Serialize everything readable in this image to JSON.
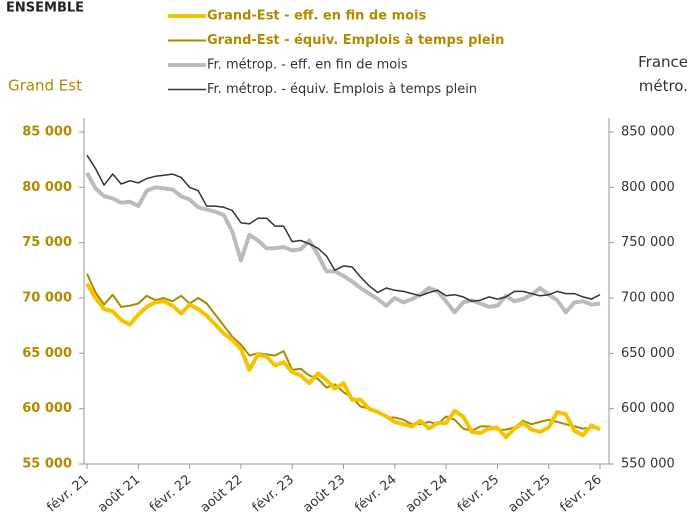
{
  "chart_data": {
    "type": "line",
    "title": "ENSEMBLE",
    "ylabel": "Grand Est",
    "y2label": "France métro.",
    "categories": [
      "févr. 21",
      null,
      null,
      null,
      null,
      null,
      "août 21",
      null,
      null,
      null,
      null,
      null,
      "févr. 22",
      null,
      null,
      null,
      null,
      null,
      "août 22",
      null,
      null,
      null,
      null,
      null,
      "févr. 23",
      null,
      null,
      null,
      null,
      null,
      "août 23",
      null,
      null,
      null,
      null,
      null,
      "févr. 24",
      null,
      null,
      null,
      null,
      null,
      "août 24",
      null,
      null,
      null,
      null,
      null,
      "févr. 25",
      null,
      null,
      null,
      null,
      null,
      "août 25",
      null,
      null,
      null,
      null,
      null,
      "févr. 26"
    ],
    "ylim": [
      55000,
      85000
    ],
    "yticks": [
      {
        "value": 55000,
        "label": "55 000"
      },
      {
        "value": 60000,
        "label": "60 000"
      },
      {
        "value": 65000,
        "label": "65 000"
      },
      {
        "value": 70000,
        "label": "70 000"
      },
      {
        "value": 75000,
        "label": "75 000"
      },
      {
        "value": 80000,
        "label": "80 000"
      },
      {
        "value": 85000,
        "label": "85 000"
      }
    ],
    "y2lim": [
      550000,
      850000
    ],
    "y2ticks": [
      {
        "value": 550000,
        "label": "550 000"
      },
      {
        "value": 600000,
        "label": "600 000"
      },
      {
        "value": 650000,
        "label": "650 000"
      },
      {
        "value": 700000,
        "label": "700 000"
      },
      {
        "value": 750000,
        "label": "750 000"
      },
      {
        "value": 800000,
        "label": "800 000"
      },
      {
        "value": 850000,
        "label": "850 000"
      }
    ],
    "series": [
      {
        "name": "Grand-Est - eff. en fin de mois",
        "color": "#f5c400",
        "axis": "y",
        "values": [
          71300,
          70000,
          69000,
          68800,
          68000,
          67600,
          68500,
          69200,
          69600,
          69700,
          69300,
          68600,
          69400,
          69000,
          68400,
          67600,
          66800,
          66200,
          65400,
          63500,
          64900,
          64700,
          63900,
          64200,
          63300,
          63000,
          62300,
          63200,
          62600,
          61800,
          62300,
          60800,
          60800,
          60000,
          59700,
          59300,
          58800,
          58600,
          58400,
          58900,
          58200,
          58700,
          58700,
          59800,
          59300,
          57900,
          57800,
          58200,
          58300,
          57400,
          58200,
          58700,
          58100,
          57900,
          58300,
          59700,
          59500,
          58000,
          57600,
          58500,
          58100
        ]
      },
      {
        "name": "Grand-Est - équiv. Emplois à temps plein",
        "color": "#a88a00",
        "axis": "y",
        "values": [
          72200,
          70500,
          69400,
          70300,
          69200,
          69300,
          69500,
          70200,
          69800,
          70000,
          69700,
          70200,
          69500,
          70000,
          69500,
          68500,
          67500,
          66500,
          65800,
          64800,
          65000,
          64900,
          64800,
          65200,
          63500,
          63600,
          63000,
          62700,
          61900,
          62200,
          61500,
          61000,
          60200,
          60000,
          59700,
          59200,
          59200,
          59000,
          58600,
          58600,
          58800,
          58600,
          59300,
          59000,
          58200,
          58000,
          58400,
          58400,
          58100,
          58100,
          58300,
          58900,
          58600,
          58800,
          59000,
          58800,
          58600,
          58400,
          58200,
          58300,
          58200
        ]
      },
      {
        "name": "Fr. métrop. - eff. en fin de mois",
        "color": "#bbbbbb",
        "axis": "y2",
        "values": [
          813000,
          799000,
          792000,
          790000,
          786000,
          787000,
          783000,
          797000,
          800000,
          799000,
          798000,
          792000,
          789000,
          782000,
          780000,
          778000,
          775000,
          760000,
          734000,
          757000,
          752000,
          745000,
          745000,
          746000,
          743000,
          744000,
          752000,
          739000,
          724000,
          724000,
          720000,
          715000,
          709000,
          704000,
          699000,
          693000,
          700000,
          696000,
          699000,
          703000,
          709000,
          706000,
          697000,
          687000,
          696000,
          698000,
          695000,
          692000,
          693000,
          702000,
          697000,
          699000,
          703000,
          709000,
          703000,
          698000,
          687000,
          696000,
          697000,
          694000,
          695000
        ]
      },
      {
        "name": "Fr. métrop.  - équiv. Emplois à temps plein",
        "color": "#333333",
        "axis": "y2",
        "values": [
          829000,
          817000,
          802000,
          812000,
          803000,
          806000,
          804000,
          808000,
          810000,
          811000,
          812000,
          809000,
          800000,
          797000,
          783000,
          783000,
          782000,
          779000,
          768000,
          767000,
          772000,
          772000,
          765000,
          765000,
          751000,
          752000,
          749000,
          745000,
          738000,
          725000,
          729000,
          728000,
          719000,
          711000,
          705000,
          709000,
          707000,
          706000,
          704000,
          702000,
          705000,
          707000,
          702000,
          703000,
          701000,
          697000,
          698000,
          701000,
          699000,
          701000,
          706000,
          706000,
          704000,
          702000,
          703000,
          706000,
          704000,
          704000,
          701000,
          699000,
          703000
        ]
      }
    ]
  }
}
